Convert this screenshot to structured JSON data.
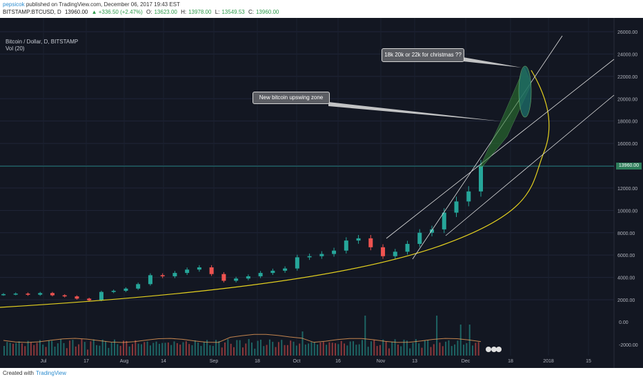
{
  "header": {
    "user": "pepsicok",
    "published": "published on TradingView.com, December 06, 2017 19:43 EST",
    "symbol": "BITSTAMP:BTCUSD, D",
    "last": "13960.00",
    "change": "▲ +336.50 (+2.47%)",
    "ohlc": {
      "o_label": "O:",
      "o": "13623.00",
      "h_label": "H:",
      "h": "13978.00",
      "l_label": "L:",
      "l": "13549.53",
      "c_label": "C:",
      "c": "13960.00"
    }
  },
  "legend": {
    "title": "Bitcoin / Dollar, D, BITSTAMP",
    "volume": "Vol (20)"
  },
  "price_tag": "13960.00",
  "annotations": {
    "upswing": "New bitcoin upswing zone",
    "christmas": "18k 20k or 22k for christmas ??"
  },
  "footer": {
    "created": "Created with",
    "brand": "TradingView"
  },
  "colors": {
    "background": "#131722",
    "up": "#26a69a",
    "down": "#ef5350",
    "curve": "#e6d21f",
    "trend": "#e0e0e0",
    "zone": "#2e7d32",
    "price_line": "#26a69a"
  },
  "chart_data": {
    "type": "candlestick",
    "price_axis": {
      "ticks": [
        26000,
        24000,
        22000,
        20000,
        18000,
        16000,
        14000,
        12000,
        10000,
        8000,
        6000,
        4000,
        2000
      ],
      "tick_labels": [
        "26000.00",
        "24000.00",
        "22000.00",
        "20000.00",
        "18000.00",
        "16000.00",
        "14000.00",
        "12000.00",
        "10000.00",
        "8000.00",
        "6000.00",
        "4000.00",
        "2000.00"
      ]
    },
    "volume_axis": {
      "ticks": [
        0,
        -2000
      ],
      "tick_labels": [
        "0.00",
        "-2000.00"
      ]
    },
    "x_tick_labels": [
      "Jul",
      "17",
      "Aug",
      "14",
      "Sep",
      "18",
      "Oct",
      "16",
      "Nov",
      "13",
      "Dec",
      "18",
      "2018",
      "15"
    ],
    "series": [
      {
        "name": "BTCUSD",
        "close_approx": [
          2500,
          2550,
          2450,
          2600,
          2400,
          2300,
          2100,
          1950,
          2700,
          2800,
          3000,
          3400,
          4200,
          4100,
          4400,
          4700,
          4900,
          4300,
          3700,
          3900,
          4100,
          4400,
          4600,
          4800,
          5800,
          5900,
          6100,
          6400,
          7300,
          7500,
          6700,
          5900,
          6300,
          7000,
          8000,
          8300,
          9800,
          10800,
          11700,
          13960
        ]
      }
    ],
    "last_price": 13960
  }
}
